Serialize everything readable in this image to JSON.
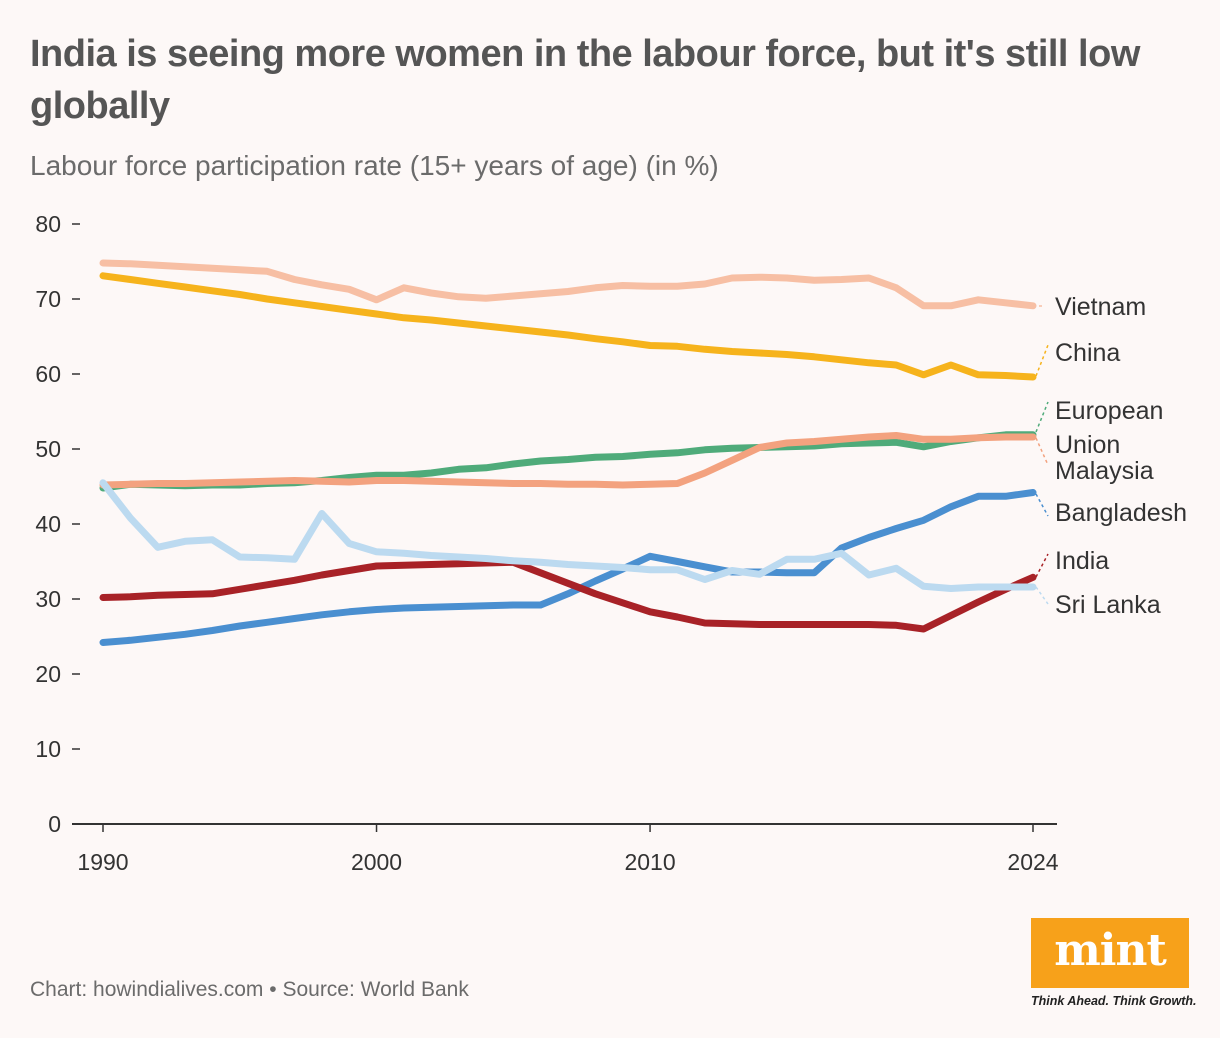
{
  "title": "India is seeing more women in the labour force, but it's still low globally",
  "subtitle": "Labour force participation rate (15+ years of age) (in %)",
  "footer": "Chart: howindialives.com • Source: World Bank",
  "logo": {
    "word": "mint",
    "tagline": "Think Ahead. Think Growth.",
    "color": "#f7a11a"
  },
  "chart_data": {
    "type": "line",
    "title": "India is seeing more women in the labour force, but it's still low globally",
    "ylabel": "Labour force participation rate (15+ years of age) (in %)",
    "xlabel": "",
    "ylim": [
      0,
      80
    ],
    "xlim": [
      1990,
      2024
    ],
    "y_ticks": [
      0,
      10,
      20,
      30,
      40,
      50,
      60,
      70,
      80
    ],
    "x_ticks": [
      1990,
      2000,
      2010,
      2024
    ],
    "grid": false,
    "legend": "direct-labels-right",
    "x": [
      1990,
      1991,
      1992,
      1993,
      1994,
      1995,
      1996,
      1997,
      1998,
      1999,
      2000,
      2001,
      2002,
      2003,
      2004,
      2005,
      2006,
      2007,
      2008,
      2009,
      2010,
      2011,
      2012,
      2013,
      2014,
      2015,
      2016,
      2017,
      2018,
      2019,
      2020,
      2021,
      2022,
      2023,
      2024
    ],
    "series": [
      {
        "name": "Vietnam",
        "color": "#f7bfa4",
        "values": [
          74.8,
          74.7,
          74.5,
          74.3,
          74.1,
          73.9,
          73.7,
          72.6,
          71.9,
          71.3,
          69.9,
          71.5,
          70.8,
          70.3,
          70.1,
          70.4,
          70.7,
          71.0,
          71.5,
          71.8,
          71.7,
          71.7,
          72.0,
          72.8,
          72.9,
          72.8,
          72.5,
          72.6,
          72.8,
          71.5,
          69.1,
          69.1,
          69.9,
          69.5,
          69.1
        ]
      },
      {
        "name": "China",
        "color": "#f6b31c",
        "values": [
          73.1,
          72.6,
          72.1,
          71.6,
          71.1,
          70.6,
          70.0,
          69.5,
          69.0,
          68.5,
          68.0,
          67.5,
          67.2,
          66.8,
          66.4,
          66.0,
          65.6,
          65.2,
          64.7,
          64.3,
          63.8,
          63.7,
          63.3,
          63.0,
          62.8,
          62.6,
          62.3,
          61.9,
          61.5,
          61.2,
          59.9,
          61.2,
          59.9,
          59.8,
          59.6
        ]
      },
      {
        "name": "European Union",
        "color": "#4fab7a",
        "values": [
          44.8,
          45.3,
          45.2,
          45.1,
          45.2,
          45.2,
          45.4,
          45.5,
          45.8,
          46.2,
          46.5,
          46.5,
          46.8,
          47.3,
          47.5,
          48.0,
          48.4,
          48.6,
          48.9,
          49.0,
          49.3,
          49.5,
          49.9,
          50.1,
          50.2,
          50.3,
          50.4,
          50.7,
          50.8,
          50.9,
          50.3,
          51.0,
          51.5,
          51.9,
          51.9
        ]
      },
      {
        "name": "Malaysia",
        "color": "#f3a27f",
        "values": [
          45.2,
          45.3,
          45.4,
          45.4,
          45.5,
          45.6,
          45.7,
          45.8,
          45.7,
          45.6,
          45.8,
          45.8,
          45.7,
          45.6,
          45.5,
          45.4,
          45.4,
          45.3,
          45.3,
          45.2,
          45.3,
          45.4,
          46.8,
          48.5,
          50.2,
          50.8,
          51.0,
          51.3,
          51.6,
          51.8,
          51.3,
          51.3,
          51.5,
          51.6,
          51.6
        ]
      },
      {
        "name": "Bangladesh",
        "color": "#4a8fd0",
        "values": [
          24.2,
          24.5,
          24.9,
          25.3,
          25.8,
          26.4,
          26.9,
          27.4,
          27.9,
          28.3,
          28.6,
          28.8,
          28.9,
          29.0,
          29.1,
          29.2,
          29.2,
          30.7,
          32.4,
          34.0,
          35.7,
          35.0,
          34.3,
          33.6,
          33.6,
          33.5,
          33.5,
          36.8,
          38.2,
          39.4,
          40.5,
          42.3,
          43.7,
          43.7,
          44.2
        ]
      },
      {
        "name": "India",
        "color": "#a82227",
        "values": [
          30.2,
          30.3,
          30.5,
          30.6,
          30.7,
          31.3,
          31.9,
          32.5,
          33.2,
          33.8,
          34.4,
          34.5,
          34.6,
          34.7,
          34.8,
          34.9,
          33.5,
          32.1,
          30.7,
          29.5,
          28.3,
          27.6,
          26.8,
          26.7,
          26.6,
          26.6,
          26.6,
          26.6,
          26.6,
          26.5,
          26.0,
          27.8,
          29.6,
          31.3,
          32.9
        ]
      },
      {
        "name": "Sri Lanka",
        "color": "#bcdaf0",
        "values": [
          45.5,
          40.8,
          36.9,
          37.7,
          37.9,
          35.6,
          35.5,
          35.3,
          41.4,
          37.4,
          36.3,
          36.1,
          35.8,
          35.6,
          35.4,
          35.1,
          34.9,
          34.6,
          34.4,
          34.2,
          33.9,
          33.9,
          32.6,
          33.8,
          33.3,
          35.3,
          35.3,
          36.1,
          33.2,
          34.1,
          31.7,
          31.4,
          31.6,
          31.6,
          31.6
        ]
      }
    ],
    "series_labels": [
      {
        "lines": [
          "Vietnam"
        ],
        "series": "Vietnam"
      },
      {
        "lines": [
          "China"
        ],
        "series": "China"
      },
      {
        "lines": [
          "European",
          "Union"
        ],
        "series": "European Union"
      },
      {
        "lines": [
          "Malaysia"
        ],
        "series": "Malaysia"
      },
      {
        "lines": [
          "Bangladesh"
        ],
        "series": "Bangladesh"
      },
      {
        "lines": [
          "India"
        ],
        "series": "India"
      },
      {
        "lines": [
          "Sri Lanka"
        ],
        "series": "Sri Lanka"
      }
    ]
  }
}
